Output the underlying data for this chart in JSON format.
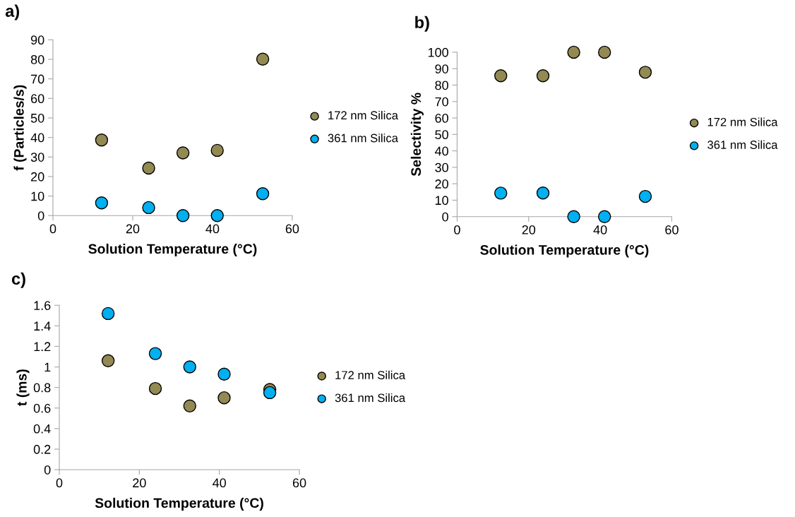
{
  "chart_data": [
    {
      "type": "scatter",
      "title": "a)",
      "xlabel": "Solution Temperature (°C)",
      "ylabel": "f (Particles/s)",
      "xlim": [
        0,
        60
      ],
      "xticks": [
        0,
        20,
        40,
        60
      ],
      "ylim": [
        0,
        90
      ],
      "yticks": [
        0,
        10,
        20,
        30,
        40,
        50,
        60,
        70,
        80,
        90
      ],
      "x": [
        12.2,
        24,
        32.6,
        41.2,
        52.6
      ],
      "marker": "circle",
      "legend": "right",
      "grid": false,
      "series": [
        {
          "name": "172 nm Silica",
          "color": "#938953",
          "values": [
            38.7,
            24.3,
            32.1,
            33.4,
            80.1
          ]
        },
        {
          "name": "361 nm Silica",
          "color": "#00b0f0",
          "values": [
            6.5,
            4.1,
            0,
            0,
            11.2
          ]
        }
      ]
    },
    {
      "type": "scatter",
      "title": "b)",
      "xlabel": "Solution Temperature (°C)",
      "ylabel": "Selectivity %",
      "xlim": [
        0,
        60
      ],
      "xticks": [
        0,
        20,
        40,
        60
      ],
      "ylim": [
        0,
        100
      ],
      "yticks": [
        0,
        10,
        20,
        30,
        40,
        50,
        60,
        70,
        80,
        90,
        100
      ],
      "x": [
        12.2,
        24,
        32.6,
        41.2,
        52.6
      ],
      "marker": "circle",
      "legend": "right",
      "grid": false,
      "series": [
        {
          "name": "172 nm Silica",
          "color": "#938953",
          "values": [
            85.7,
            85.7,
            100,
            100,
            87.8
          ]
        },
        {
          "name": "361 nm Silica",
          "color": "#00b0f0",
          "values": [
            14.3,
            14.4,
            0,
            0,
            12.3
          ]
        }
      ]
    },
    {
      "type": "scatter",
      "title": "c)",
      "xlabel": "Solution Temperature (°C)",
      "ylabel": "t (ms)",
      "xlim": [
        0,
        60
      ],
      "xticks": [
        0,
        20,
        40,
        60
      ],
      "ylim": [
        0,
        1.6
      ],
      "yticks": [
        0,
        0.2,
        0.4,
        0.6,
        0.8,
        1,
        1.2,
        1.4,
        1.6
      ],
      "x": [
        12.2,
        24,
        32.6,
        41.2,
        52.6
      ],
      "marker": "circle",
      "legend": "right",
      "grid": false,
      "series": [
        {
          "name": "172 nm Silica",
          "color": "#938953",
          "values": [
            1.06,
            0.79,
            0.62,
            0.7,
            0.78
          ]
        },
        {
          "name": "361 nm Silica",
          "color": "#00b0f0",
          "values": [
            1.52,
            1.13,
            1.0,
            0.93,
            0.75
          ]
        }
      ]
    }
  ]
}
